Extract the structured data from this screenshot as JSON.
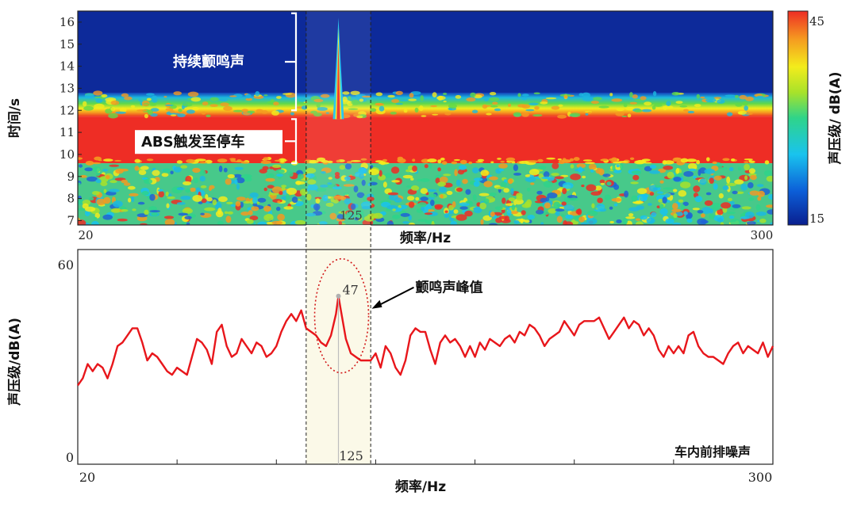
{
  "chart_data": [
    {
      "type": "heatmap",
      "ylabel": "时间/s",
      "xlabel": "频率/Hz",
      "x_range": [
        20,
        300
      ],
      "x_tick_labels": [
        "20",
        "300"
      ],
      "y_range": [
        6.8,
        16.5
      ],
      "y_ticks": [
        7,
        8,
        9,
        10,
        11,
        12,
        13,
        14,
        15,
        16
      ],
      "marker_label": "125",
      "marker_x": 125,
      "band_x_range": [
        112,
        138
      ],
      "colorbar": {
        "label": "声压级/ dB(A)",
        "min": 15,
        "max": 45,
        "min_label": "15",
        "max_label": "45"
      },
      "annotations": {
        "upper": {
          "text": "持续颤鸣声",
          "t_start": 12.0,
          "t_end": 16.4
        },
        "lower": {
          "text": "ABS触发至停车",
          "t_start": 9.6,
          "t_end": 11.6
        }
      },
      "regions": [
        {
          "t_start": 6.8,
          "t_end": 9.6,
          "level": "mixed 25-40"
        },
        {
          "t_start": 9.6,
          "t_end": 11.7,
          "level": "high ~43"
        },
        {
          "t_start": 11.7,
          "t_end": 12.8,
          "level": "transition"
        },
        {
          "t_start": 12.8,
          "t_end": 16.5,
          "level": "low ~15"
        }
      ],
      "peak_ridge": {
        "x": 125,
        "t_start": 11.6,
        "t_end": 16.2
      }
    },
    {
      "type": "line",
      "xlabel": "频率/Hz",
      "ylabel": "声压级/dB(A)",
      "x_range": [
        20,
        300
      ],
      "x_tick_labels": [
        "20",
        "300"
      ],
      "ylim": [
        0,
        60
      ],
      "y_tick_labels": [
        "0",
        "60"
      ],
      "corner_label": "车内前排噪声",
      "peak": {
        "x": 125,
        "y": 47,
        "label": "47",
        "x_label": "125",
        "annotation": "颤鸣声峰值"
      },
      "series": [
        {
          "color": "#e8161b",
          "x": [
            20,
            22,
            24,
            26,
            28,
            30,
            32,
            34,
            36,
            38,
            40,
            42,
            44,
            46,
            48,
            50,
            52,
            54,
            56,
            58,
            60,
            62,
            64,
            66,
            68,
            70,
            72,
            74,
            76,
            78,
            80,
            82,
            84,
            86,
            88,
            90,
            92,
            94,
            96,
            98,
            100,
            102,
            104,
            106,
            108,
            110,
            112,
            114,
            116,
            118,
            120,
            122,
            124,
            125,
            126,
            128,
            130,
            132,
            134,
            136,
            138,
            140,
            142,
            144,
            146,
            148,
            150,
            152,
            154,
            156,
            158,
            160,
            162,
            164,
            166,
            168,
            170,
            172,
            174,
            176,
            178,
            180,
            182,
            184,
            186,
            188,
            190,
            192,
            194,
            196,
            198,
            200,
            202,
            204,
            206,
            208,
            210,
            212,
            214,
            216,
            218,
            220,
            222,
            224,
            226,
            228,
            230,
            232,
            234,
            236,
            238,
            240,
            242,
            244,
            246,
            248,
            250,
            252,
            254,
            256,
            258,
            260,
            262,
            264,
            266,
            268,
            270,
            272,
            274,
            276,
            278,
            280,
            282,
            284,
            286,
            288,
            290,
            292,
            294,
            296,
            298,
            300
          ],
          "y": [
            22,
            24,
            28,
            26,
            28,
            27,
            24,
            28,
            33,
            34,
            36,
            38,
            38,
            34,
            29,
            31,
            30,
            28,
            26,
            25,
            27,
            26,
            25,
            30,
            35,
            34,
            32,
            28,
            37,
            39,
            33,
            30,
            31,
            35,
            33,
            31,
            34,
            33,
            30,
            31,
            33,
            37,
            40,
            42,
            40,
            43,
            38,
            37,
            36,
            34,
            33,
            36,
            42,
            47,
            43,
            35,
            31,
            30,
            29,
            29,
            29,
            31,
            27,
            33,
            31,
            27,
            25,
            29,
            36,
            38,
            37,
            37,
            32,
            28,
            34,
            36,
            34,
            35,
            33,
            30,
            33,
            30,
            34,
            32,
            35,
            34,
            33,
            35,
            36,
            34,
            37,
            36,
            39,
            38,
            36,
            33,
            35,
            36,
            37,
            40,
            38,
            36,
            39,
            40,
            40,
            40,
            41,
            38,
            35,
            37,
            39,
            41,
            38,
            40,
            39,
            36,
            38,
            36,
            32,
            30,
            33,
            31,
            33,
            31,
            36,
            37,
            33,
            31,
            30,
            30,
            29,
            28,
            31,
            33,
            34,
            31,
            33,
            32,
            31,
            34,
            30,
            33
          ]
        }
      ]
    }
  ]
}
